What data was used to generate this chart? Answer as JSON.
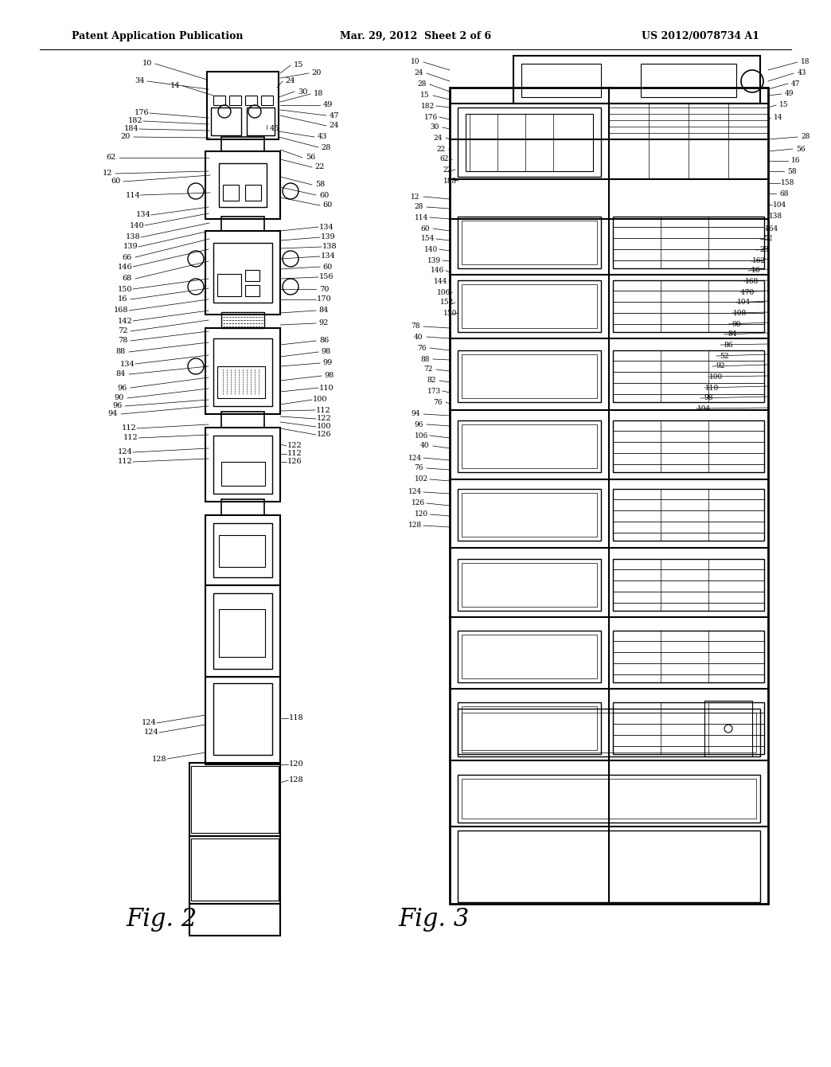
{
  "background_color": "#ffffff",
  "header_left": "Patent Application Publication",
  "header_center": "Mar. 29, 2012  Sheet 2 of 6",
  "header_right": "US 2012/0078734 A1",
  "fig2_label": "Fig. 2",
  "fig3_label": "Fig. 3"
}
